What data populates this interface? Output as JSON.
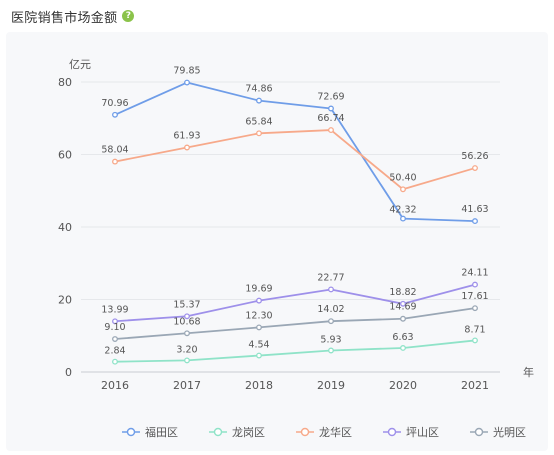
{
  "header": {
    "title": "医院销售市场金额",
    "help_icon_glyph": "?",
    "help_icon": "question-circle-icon"
  },
  "chart_data": {
    "type": "line",
    "title": "",
    "ylabel": "亿元",
    "xlabel": "年",
    "ylim": [
      0,
      80
    ],
    "yticks": [
      0,
      20,
      40,
      60,
      80
    ],
    "categories": [
      "2016",
      "2017",
      "2018",
      "2019",
      "2020",
      "2021"
    ],
    "legend_position": "bottom",
    "grid": true,
    "series": [
      {
        "name": "福田区",
        "color": "#6f9de8",
        "values": [
          70.96,
          79.85,
          74.86,
          72.69,
          42.32,
          41.63
        ]
      },
      {
        "name": "龙岗区",
        "color": "#8fe3c8",
        "values": [
          2.84,
          3.2,
          4.54,
          5.93,
          6.63,
          8.71
        ]
      },
      {
        "name": "龙华区",
        "color": "#f7a98a",
        "values": [
          58.04,
          61.93,
          65.84,
          66.74,
          50.4,
          56.26
        ]
      },
      {
        "name": "坪山区",
        "color": "#9e90ea",
        "values": [
          13.99,
          15.37,
          19.69,
          22.77,
          18.82,
          24.11
        ]
      },
      {
        "name": "光明区",
        "color": "#9aa7b5",
        "values": [
          9.1,
          10.68,
          12.3,
          14.02,
          14.69,
          17.61
        ]
      }
    ],
    "value_labels": [
      [
        "70.96",
        "79.85",
        "74.86",
        "72.69",
        "42.32",
        "41.63"
      ],
      [
        "2.84",
        "3.20",
        "4.54",
        "5.93",
        "6.63",
        "8.71"
      ],
      [
        "58.04",
        "61.93",
        "65.84",
        "66.74",
        "50.40",
        "56.26"
      ],
      [
        "13.99",
        "15.37",
        "19.69",
        "22.77",
        "18.82",
        "24.11"
      ],
      [
        "9.10",
        "10.68",
        "12.30",
        "14.02",
        "14.69",
        "17.61"
      ]
    ]
  }
}
